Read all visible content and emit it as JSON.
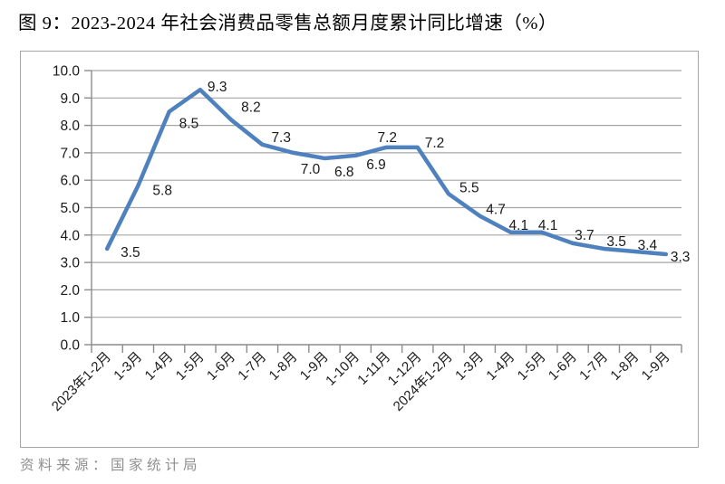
{
  "figure": {
    "title": "图 9：2023-2024 年社会消费品零售总额月度累计同比增速（%）",
    "source_note": "资料来源：国家统计局"
  },
  "chart_data": {
    "type": "line",
    "title": "图 9：2023-2024 年社会消费品零售总额月度累计同比增速（%）",
    "categories": [
      "2023年1-2月",
      "1-3月",
      "1-4月",
      "1-5月",
      "1-6月",
      "1-7月",
      "1-8月",
      "1-9月",
      "1-10月",
      "1-11月",
      "1-12月",
      "2024年1-2月",
      "1-3月",
      "1-4月",
      "1-5月",
      "1-6月",
      "1-7月",
      "1-8月",
      "1-9月"
    ],
    "values": [
      3.5,
      5.8,
      8.5,
      9.3,
      8.2,
      7.3,
      7.0,
      6.8,
      6.9,
      7.2,
      7.2,
      5.5,
      4.7,
      4.1,
      4.1,
      3.7,
      3.5,
      3.4,
      3.3
    ],
    "point_labels": [
      "3.5",
      "5.8",
      "8.5",
      "9.3",
      "8.2",
      "7.3",
      "7.0",
      "6.8",
      "6.9",
      "7.2",
      "7.2",
      "5.5",
      "4.7",
      "4.1",
      "4.1",
      "3.7",
      "3.5",
      "3.4",
      "3.3"
    ],
    "ylim": [
      0.0,
      10.0
    ],
    "ytick_step": 1.0,
    "ytick_labels": [
      "0.0",
      "1.0",
      "2.0",
      "3.0",
      "4.0",
      "5.0",
      "6.0",
      "7.0",
      "8.0",
      "9.0",
      "10.0"
    ],
    "xlabel": "",
    "ylabel": "",
    "grid": true,
    "legend": "none",
    "colors": {
      "line": "#4e81bd",
      "grid": "#a6a6a6",
      "axis": "#8c8c8c",
      "tick_label": "#1a1a1a",
      "point_label": "#1a1a1a"
    }
  }
}
